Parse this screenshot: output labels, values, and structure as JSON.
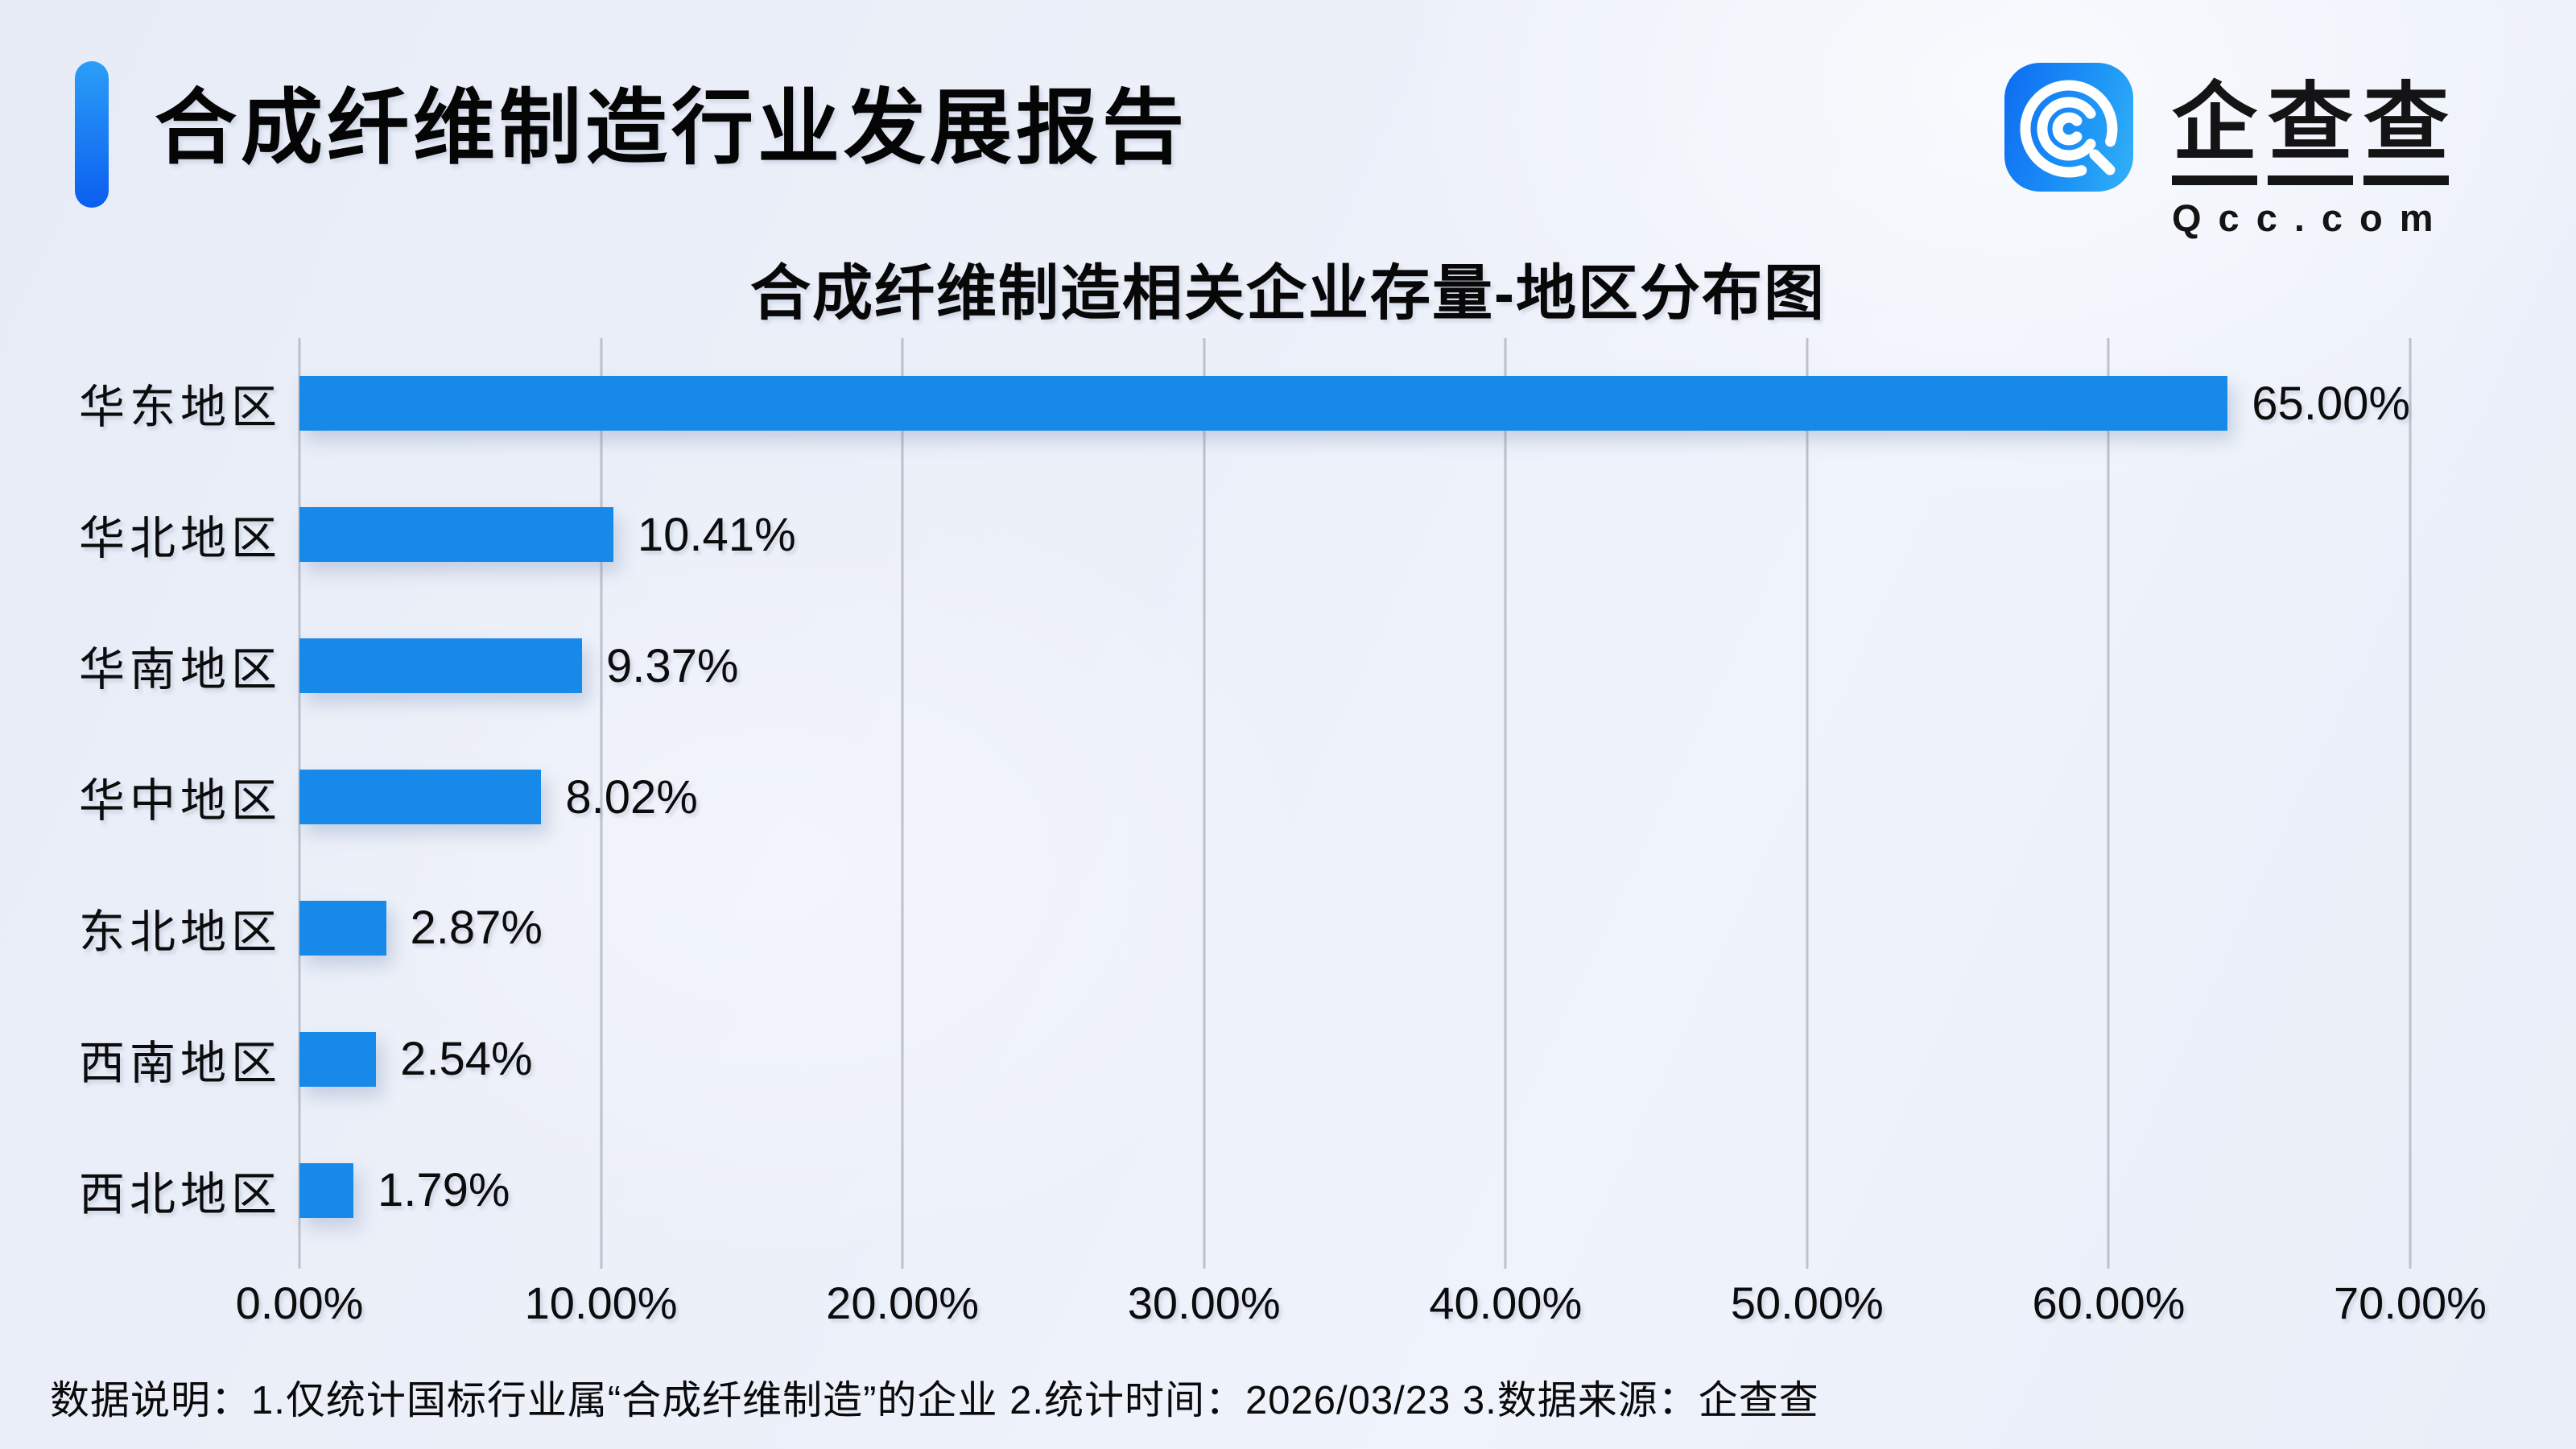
{
  "header": {
    "title": "合成纤维制造行业发展报告"
  },
  "logo": {
    "icon": "qcc-magnifier-icon",
    "chars": [
      "企",
      "查",
      "查"
    ],
    "brand": "企查查",
    "domain": "Qcc.com"
  },
  "chart_data": {
    "type": "bar",
    "orientation": "horizontal",
    "title": "合成纤维制造相关企业存量-地区分布图",
    "categories": [
      "华东地区",
      "华北地区",
      "华南地区",
      "华中地区",
      "东北地区",
      "西南地区",
      "西北地区"
    ],
    "values": [
      65.0,
      10.41,
      9.37,
      8.02,
      2.87,
      2.54,
      1.79
    ],
    "value_labels": [
      "65.00%",
      "10.41%",
      "9.37%",
      "8.02%",
      "2.87%",
      "2.54%",
      "1.79%"
    ],
    "x_ticks": [
      "0.00%",
      "10.00%",
      "20.00%",
      "30.00%",
      "40.00%",
      "50.00%",
      "60.00%",
      "70.00%"
    ],
    "xlim": [
      0,
      70
    ],
    "grid": true,
    "legend": false,
    "bar_color": "#1789e8",
    "grid_color": "#bcc1cb"
  },
  "footer": {
    "note": "数据说明：1.仅统计国标行业属“合成纤维制造”的企业   2.统计时间：2026/03/23   3.数据来源：企查查"
  },
  "colors": {
    "accent_from": "#2b9ef7",
    "accent_to": "#0b5ef0",
    "icon_from": "#0d6cf2",
    "icon_to": "#33b2f8",
    "background": "#edf1f9",
    "text": "#0d0d0d"
  }
}
